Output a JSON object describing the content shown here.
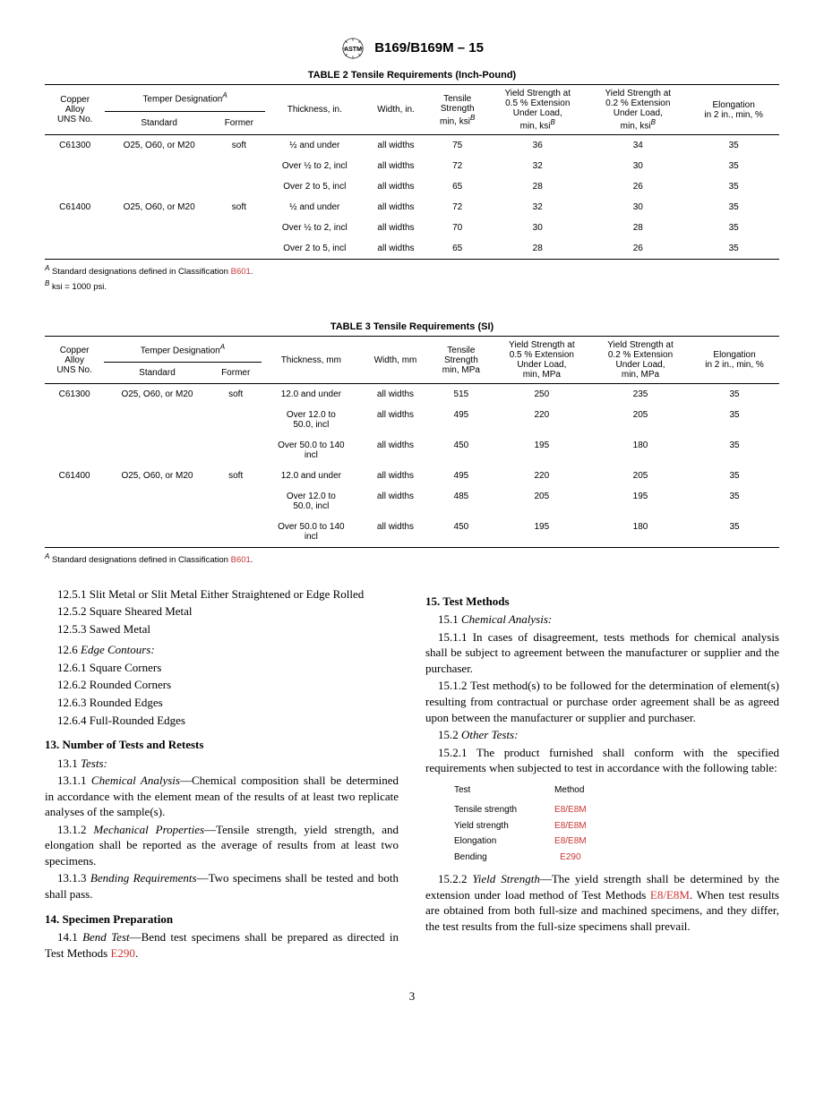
{
  "header": {
    "designation": "B169/B169M – 15"
  },
  "table2": {
    "title": "TABLE 2 Tensile Requirements (Inch-Pound)",
    "headers": {
      "copper_alloy": "Copper\nAlloy\nUNS No.",
      "temper": "Temper Designation",
      "temper_sup": "A",
      "standard": "Standard",
      "former": "Former",
      "thickness": "Thickness, in.",
      "width": "Width, in.",
      "tensile": "Tensile\nStrength\nmin, ksi",
      "tensile_sup": "B",
      "yield05": "Yield Strength at\n0.5 % Extension\nUnder Load,\nmin, ksi",
      "yield05_sup": "B",
      "yield02": "Yield Strength at\n0.2 % Extension\nUnder Load,\nmin, ksi",
      "yield02_sup": "B",
      "elongation": "Elongation\nin 2 in., min, %"
    },
    "rows": [
      {
        "alloy": "C61300",
        "standard": "O25, O60, or M20",
        "former": "soft",
        "thickness": "½ and under",
        "width": "all widths",
        "tensile": "75",
        "y05": "36",
        "y02": "34",
        "elong": "35"
      },
      {
        "alloy": "",
        "standard": "",
        "former": "",
        "thickness": "Over ½ to 2, incl",
        "width": "all widths",
        "tensile": "72",
        "y05": "32",
        "y02": "30",
        "elong": "35"
      },
      {
        "alloy": "",
        "standard": "",
        "former": "",
        "thickness": "Over 2 to 5, incl",
        "width": "all widths",
        "tensile": "65",
        "y05": "28",
        "y02": "26",
        "elong": "35"
      },
      {
        "alloy": "C61400",
        "standard": "O25, O60, or M20",
        "former": "soft",
        "thickness": "½ and under",
        "width": "all widths",
        "tensile": "72",
        "y05": "32",
        "y02": "30",
        "elong": "35"
      },
      {
        "alloy": "",
        "standard": "",
        "former": "",
        "thickness": "Over ½ to 2, incl",
        "width": "all widths",
        "tensile": "70",
        "y05": "30",
        "y02": "28",
        "elong": "35"
      },
      {
        "alloy": "",
        "standard": "",
        "former": "",
        "thickness": "Over 2 to 5, incl",
        "width": "all widths",
        "tensile": "65",
        "y05": "28",
        "y02": "26",
        "elong": "35"
      }
    ],
    "footnotes": {
      "a_prefix": "A",
      "a_text": " Standard designations defined in Classification ",
      "a_link": "B601",
      "a_end": ".",
      "b_prefix": "B",
      "b_text": " ksi = 1000 psi."
    }
  },
  "table3": {
    "title": "TABLE 3 Tensile Requirements (SI)",
    "headers": {
      "copper_alloy": "Copper\nAlloy\nUNS No.",
      "temper": "Temper Designation",
      "temper_sup": "A",
      "standard": "Standard",
      "former": "Former",
      "thickness": "Thickness, mm",
      "width": "Width, mm",
      "tensile": "Tensile\nStrength\nmin, MPa",
      "yield05": "Yield Strength at\n0.5 % Extension\nUnder Load,\nmin, MPa",
      "yield02": "Yield Strength at\n0.2 % Extension\nUnder Load,\nmin, MPa",
      "elongation": "Elongation\nin 2 in., min, %"
    },
    "rows": [
      {
        "alloy": "C61300",
        "standard": "O25, O60, or M20",
        "former": "soft",
        "thickness": "12.0 and under",
        "width": "all widths",
        "tensile": "515",
        "y05": "250",
        "y02": "235",
        "elong": "35"
      },
      {
        "alloy": "",
        "standard": "",
        "former": "",
        "thickness": "Over 12.0 to\n50.0, incl",
        "width": "all widths",
        "tensile": "495",
        "y05": "220",
        "y02": "205",
        "elong": "35"
      },
      {
        "alloy": "",
        "standard": "",
        "former": "",
        "thickness": "Over 50.0 to 140\nincl",
        "width": "all widths",
        "tensile": "450",
        "y05": "195",
        "y02": "180",
        "elong": "35"
      },
      {
        "alloy": "C61400",
        "standard": "O25, O60, or M20",
        "former": "soft",
        "thickness": "12.0 and under",
        "width": "all widths",
        "tensile": "495",
        "y05": "220",
        "y02": "205",
        "elong": "35"
      },
      {
        "alloy": "",
        "standard": "",
        "former": "",
        "thickness": "Over 12.0 to\n50.0, incl",
        "width": "all widths",
        "tensile": "485",
        "y05": "205",
        "y02": "195",
        "elong": "35"
      },
      {
        "alloy": "",
        "standard": "",
        "former": "",
        "thickness": "Over 50.0 to 140\nincl",
        "width": "all widths",
        "tensile": "450",
        "y05": "195",
        "y02": "180",
        "elong": "35"
      }
    ],
    "footnotes": {
      "a_prefix": "A",
      "a_text": " Standard designations defined in Classification ",
      "a_link": "B601",
      "a_end": "."
    }
  },
  "body": {
    "p1": "12.5.1 Slit Metal or Slit Metal Either Straightened or Edge Rolled",
    "p2": "12.5.2 Square Sheared Metal",
    "p3": "12.5.3 Sawed Metal",
    "p4a": "12.6 ",
    "p4b": "Edge Contours:",
    "p5": "12.6.1 Square Corners",
    "p6": "12.6.2 Rounded Corners",
    "p7": "12.6.3 Rounded Edges",
    "p8": "12.6.4 Full-Rounded Edges",
    "s13": "13. Number of Tests and Retests",
    "p9a": "13.1 ",
    "p9b": "Tests:",
    "p10a": "13.1.1 ",
    "p10b": "Chemical Analysis",
    "p10c": "—Chemical composition shall be determined in accordance with the element mean of the results of at least two replicate analyses of the sample(s).",
    "p11a": "13.1.2 ",
    "p11b": "Mechanical Properties",
    "p11c": "—Tensile strength, yield strength, and elongation shall be reported as the average of results from at least two specimens.",
    "p12a": "13.1.3 ",
    "p12b": "Bending Requirements",
    "p12c": "—Two specimens shall be tested and both shall pass.",
    "s14": "14. Specimen Preparation",
    "p13a": "14.1 ",
    "p13b": "Bend Test",
    "p13c": "—Bend test specimens shall be prepared as directed in Test Methods ",
    "p13link": "E290",
    "p13d": ".",
    "s15": "15. Test Methods",
    "p14a": "15.1 ",
    "p14b": "Chemical Analysis:",
    "p15": "15.1.1 In cases of disagreement, tests methods for chemical analysis shall be subject to agreement between the manufacturer or supplier and the purchaser.",
    "p16": "15.1.2 Test method(s) to be followed for the determination of element(s) resulting from contractual or purchase order agreement shall be as agreed upon between the manufacturer or supplier and purchaser.",
    "p17a": "15.2 ",
    "p17b": "Other Tests:",
    "p18": "15.2.1 The product furnished shall conform with the specified requirements when subjected to test in accordance with the following table:",
    "methods": {
      "head_test": "Test",
      "head_method": "Method",
      "rows": [
        {
          "test": "Tensile strength",
          "method": "E8/E8M"
        },
        {
          "test": "Yield strength",
          "method": "E8/E8M"
        },
        {
          "test": "Elongation",
          "method": "E8/E8M"
        },
        {
          "test": "Bending",
          "method": "E290"
        }
      ]
    },
    "p19a": "15.2.2 ",
    "p19b": "Yield Strength",
    "p19c": "—The yield strength shall be determined by the extension under load method of Test Methods ",
    "p19link": "E8/E8M",
    "p19d": ". When test results are obtained from both full-size and machined specimens, and they differ, the test results from the full-size specimens shall prevail."
  },
  "page_number": "3"
}
